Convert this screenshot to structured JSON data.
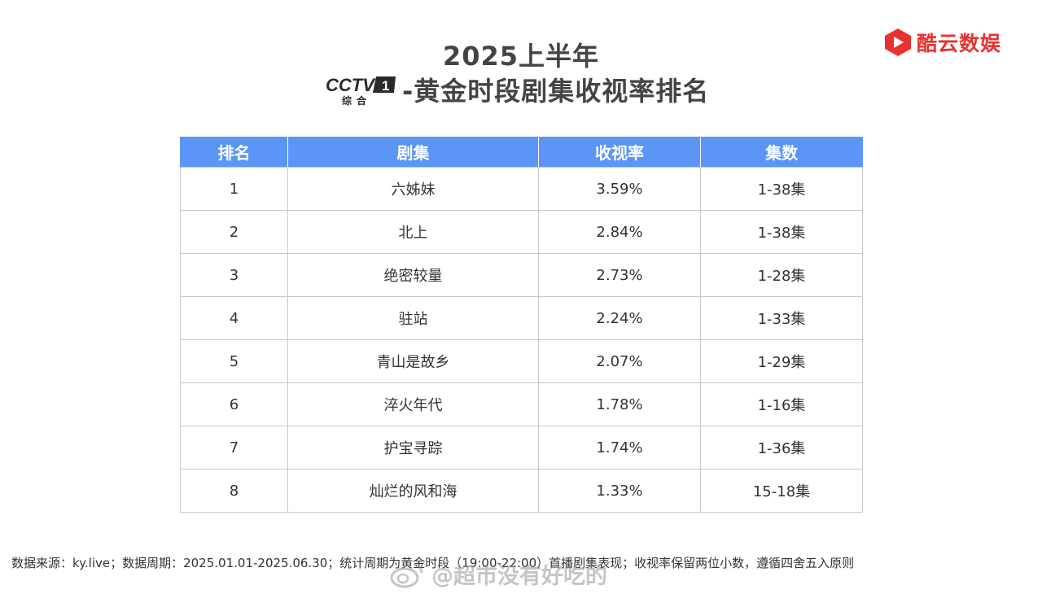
{
  "header": {
    "title_line1": "2025上半年",
    "title_line2": "-黄金时段剧集收视率排名",
    "cctv_logo": {
      "wordmark": "CCTV",
      "channel": "1",
      "subtitle": "综合"
    },
    "brand": {
      "name": "酷云数娱",
      "icon": "kuyun-logo-icon",
      "color": "#e8322f"
    }
  },
  "table": {
    "header_color": "#5b95f5",
    "columns": [
      "排名",
      "剧集",
      "收视率",
      "集数"
    ],
    "rows": [
      {
        "rank": "1",
        "title": "六姊妹",
        "rating": "3.59%",
        "episodes": "1-38集"
      },
      {
        "rank": "2",
        "title": "北上",
        "rating": "2.84%",
        "episodes": "1-38集"
      },
      {
        "rank": "3",
        "title": "绝密较量",
        "rating": "2.73%",
        "episodes": "1-28集"
      },
      {
        "rank": "4",
        "title": "驻站",
        "rating": "2.24%",
        "episodes": "1-33集"
      },
      {
        "rank": "5",
        "title": "青山是故乡",
        "rating": "2.07%",
        "episodes": "1-29集"
      },
      {
        "rank": "6",
        "title": "淬火年代",
        "rating": "1.78%",
        "episodes": "1-16集"
      },
      {
        "rank": "7",
        "title": "护宝寻踪",
        "rating": "1.74%",
        "episodes": "1-36集"
      },
      {
        "rank": "8",
        "title": "灿烂的风和海",
        "rating": "1.33%",
        "episodes": "15-18集"
      }
    ]
  },
  "footer": {
    "note": "数据来源：ky.live；数据周期：2025.01.01-2025.06.30；统计周期为黄金时段（19:00-22:00）首播剧集表现；收视率保留两位小数，遵循四舍五入原则"
  },
  "watermark": {
    "text": "@超市没有好吃的",
    "icon": "weibo-icon"
  }
}
